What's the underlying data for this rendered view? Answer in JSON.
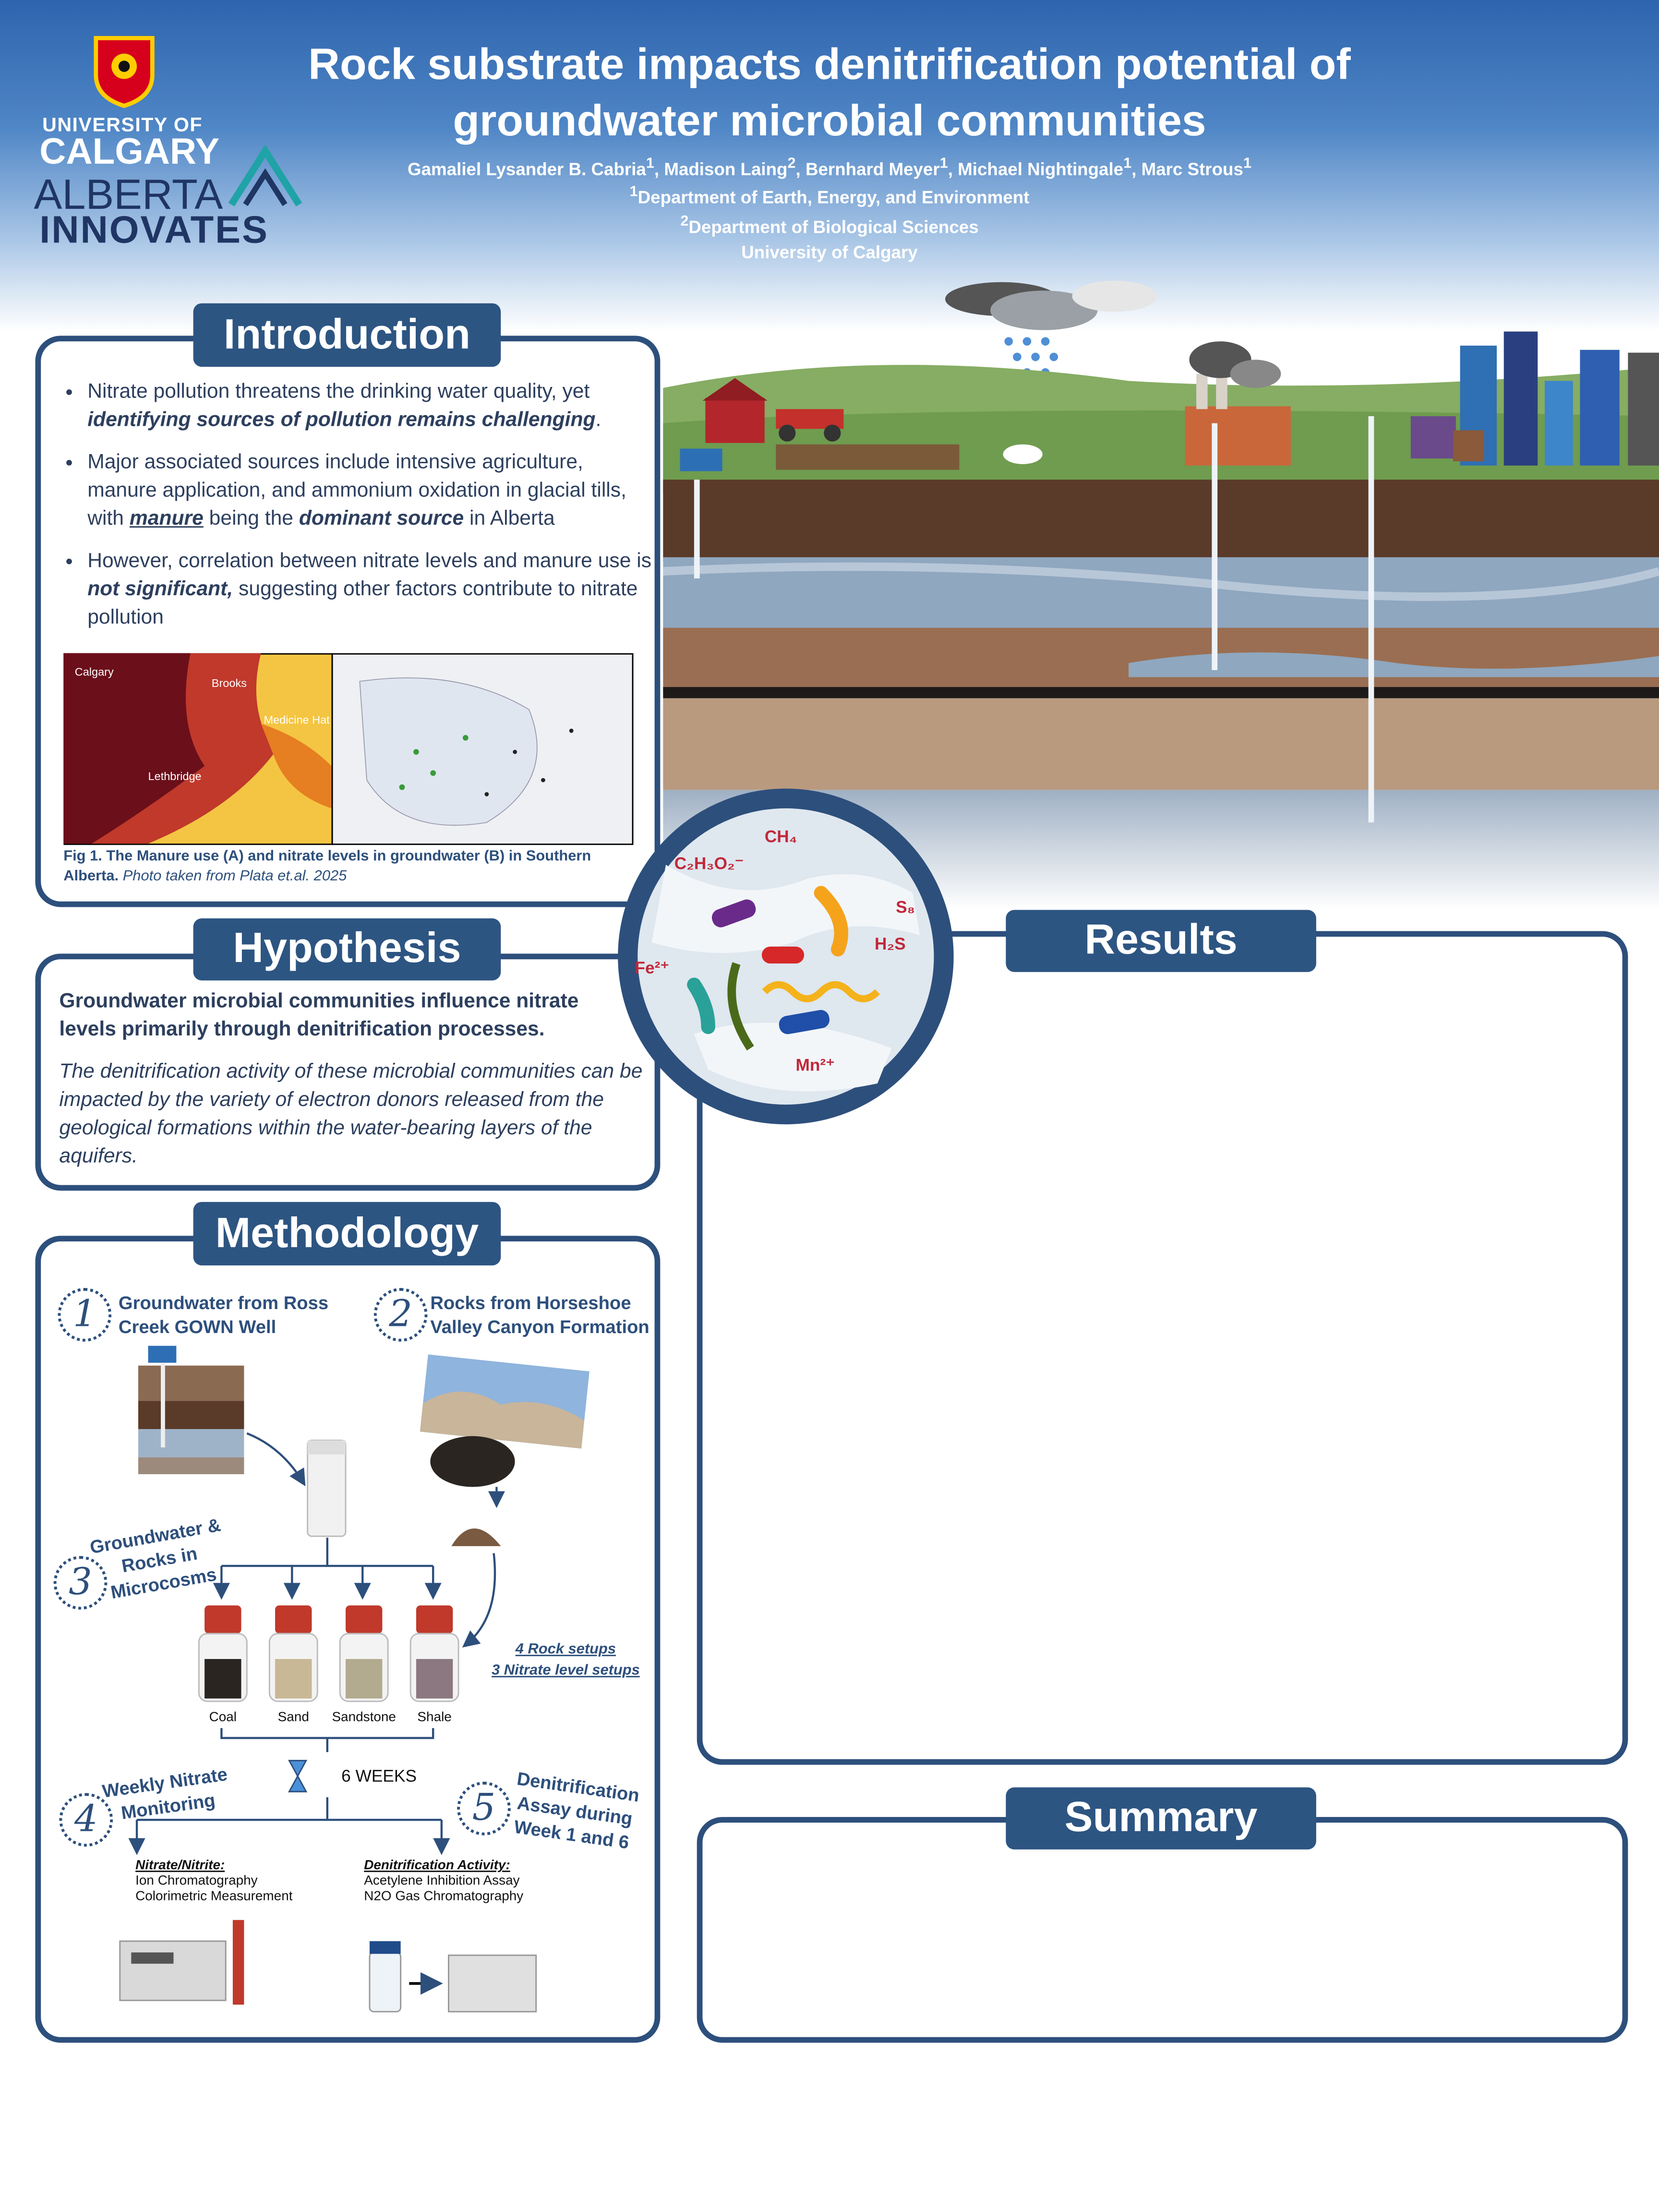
{
  "logos": {
    "university_line1": "UNIVERSITY OF",
    "university_line2": "CALGARY",
    "partner_line1": "ALBERTA",
    "partner_line2": "INNOVATES"
  },
  "header": {
    "title": "Rock substrate impacts denitrification potential of groundwater microbial communities",
    "authors": [
      {
        "name": "Gamaliel Lysander B. Cabria",
        "affiliation": "1"
      },
      {
        "name": "Madison Laing",
        "affiliation": "2"
      },
      {
        "name": "Bernhard Meyer",
        "affiliation": "1"
      },
      {
        "name": "Michael Nightingale",
        "affiliation": "1"
      },
      {
        "name": "Marc Strous",
        "affiliation": "1"
      }
    ],
    "author_separator": ", ",
    "affiliations": [
      {
        "number": "1",
        "name": "Department of Earth, Energy, and Environment"
      },
      {
        "number": "2",
        "name": "Department of Biological Sciences"
      }
    ],
    "institution": "University of Calgary"
  },
  "introduction": {
    "title": "Introduction",
    "bullets": [
      [
        "Nitrate pollution threatens the drinking water quality, yet ",
        "identifying sources of pollution remains challenging",
        "."
      ],
      [
        "Major associated sources include intensive agriculture, manure application, and ammonium oxidation in glacial tills, with ",
        "manure",
        " being the ",
        "dominant source",
        " in Alberta"
      ],
      [
        "However, correlation between nitrate levels and manure use is ",
        "not significant,",
        " suggesting other factors contribute to nitrate pollution"
      ]
    ],
    "map_labels": [
      "Calgary",
      "Brooks",
      "Medicine Hat",
      "Lethbridge"
    ],
    "caption_bold": "Fig 1. The Manure use (A) and nitrate levels in groundwater (B) in Southern Alberta.",
    "caption_italic": "Photo taken from Plata et.al. 2025"
  },
  "diagram_labels": [
    "C₂H₃O₂⁻",
    "CH₄",
    "S₈",
    "H₂S",
    "Fe²⁺",
    "Mn²⁺"
  ],
  "hypothesis": {
    "title": "Hypothesis",
    "statement": "Groundwater microbial communities influence nitrate levels primarily through denitrification processes.",
    "detail": "The denitrification activity of these microbial communities can be impacted by the variety of electron donors released from the geological formations within the water-bearing layers of the aquifers."
  },
  "methodology": {
    "title": "Methodology",
    "steps": [
      {
        "number": "1",
        "text": "Groundwater from Ross Creek GOWN Well"
      },
      {
        "number": "2",
        "text": "Rocks from Horseshoe Valley Canyon Formation"
      },
      {
        "number": "3",
        "text": "Groundwater & Rocks in Microcosms"
      },
      {
        "number": "4",
        "text": "Weekly Nitrate Monitoring"
      },
      {
        "number": "5",
        "text": "Denitrification Assay during Week 1 and 6"
      }
    ],
    "rocks": [
      "Coal",
      "Sand",
      "Sandstone",
      "Shale"
    ],
    "setups": [
      "4 Rock setups",
      "3 Nitrate level setups"
    ],
    "duration": "6 WEEKS",
    "analyses": [
      {
        "heading": "Nitrate/Nitrite:",
        "methods": [
          "Ion Chromatography",
          "Colorimetric Measurement"
        ]
      },
      {
        "heading": "Denitrification Activity:",
        "methods": [
          "Acetylene Inhibition Assay",
          "N2O Gas Chromatography"
        ]
      }
    ]
  },
  "results": {
    "title": "Results"
  },
  "summary": {
    "title": "Summary"
  }
}
